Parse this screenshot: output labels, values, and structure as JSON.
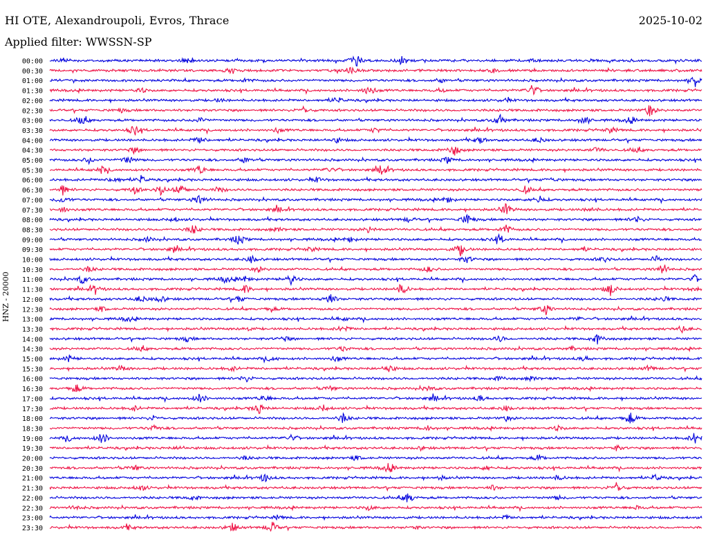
{
  "header": {
    "station": "HI OTE, Alexandroupoli, Evros, Thrace",
    "date": "2025-10-02",
    "filter": "Applied filter: WWSSN-SP"
  },
  "colors": {
    "blue": "#0000dd",
    "red": "#ee1144"
  },
  "chart_data": {
    "type": "line",
    "title": "HI OTE, Alexandroupoli, Evros, Thrace",
    "ylabel": "HNZ - 20000",
    "xlabel": "",
    "tick_labels": [
      "00:00",
      "00:30",
      "01:00",
      "01:30",
      "02:00",
      "02:30",
      "03:00",
      "03:30",
      "04:00",
      "04:30",
      "05:00",
      "05:30",
      "06:00",
      "06:30",
      "07:00",
      "07:30",
      "08:00",
      "08:30",
      "09:00",
      "09:30",
      "10:00",
      "10:30",
      "11:00",
      "11:30",
      "12:00",
      "12:30",
      "13:00",
      "13:30",
      "14:00",
      "14:30",
      "15:00",
      "15:30",
      "16:00",
      "16:30",
      "17:00",
      "17:30",
      "18:00",
      "18:30",
      "19:00",
      "19:30",
      "20:00",
      "20:30",
      "21:00",
      "21:30",
      "22:00",
      "22:30",
      "23:00",
      "23:30"
    ],
    "series_colors": [
      "#0000dd",
      "#ee1144"
    ],
    "grid": false,
    "events": [
      [
        [
          0.47,
          1.0
        ],
        [
          0.54,
          0.8
        ],
        [
          0.21,
          0.4
        ],
        [
          0.02,
          0.3
        ],
        [
          0.74,
          0.3
        ]
      ],
      [
        [
          0.46,
          0.6
        ],
        [
          0.28,
          0.4
        ],
        [
          0.68,
          0.3
        ]
      ],
      [
        [
          0.99,
          1.0
        ],
        [
          0.3,
          0.3
        ],
        [
          0.6,
          0.3
        ]
      ],
      [
        [
          0.49,
          1.0
        ],
        [
          0.74,
          1.0
        ],
        [
          0.14,
          0.4
        ],
        [
          0.6,
          0.3
        ]
      ],
      [
        [
          0.44,
          0.6
        ],
        [
          0.26,
          0.3
        ],
        [
          0.7,
          0.3
        ]
      ],
      [
        [
          0.39,
          0.6
        ],
        [
          0.92,
          1.0
        ],
        [
          0.11,
          0.3
        ]
      ],
      [
        [
          0.05,
          0.8
        ],
        [
          0.23,
          0.5
        ],
        [
          0.69,
          1.0
        ],
        [
          0.82,
          0.8
        ],
        [
          0.89,
          0.5
        ]
      ],
      [
        [
          0.13,
          0.9
        ],
        [
          0.5,
          0.5
        ],
        [
          0.35,
          0.4
        ],
        [
          0.86,
          0.5
        ]
      ],
      [
        [
          0.23,
          0.6
        ],
        [
          0.66,
          0.6
        ],
        [
          0.75,
          0.5
        ],
        [
          0.44,
          0.4
        ]
      ],
      [
        [
          0.62,
          1.0
        ],
        [
          0.13,
          0.5
        ],
        [
          0.84,
          0.5
        ],
        [
          0.9,
          0.4
        ]
      ],
      [
        [
          0.12,
          0.8
        ],
        [
          0.06,
          0.5
        ],
        [
          0.3,
          0.5
        ],
        [
          0.61,
          0.5
        ]
      ],
      [
        [
          0.23,
          0.8
        ],
        [
          0.51,
          0.9
        ],
        [
          0.08,
          0.6
        ],
        [
          0.43,
          0.5
        ]
      ],
      [
        [
          0.1,
          0.6
        ],
        [
          0.14,
          0.6
        ],
        [
          0.41,
          0.4
        ],
        [
          0.77,
          0.3
        ]
      ],
      [
        [
          0.2,
          1.0
        ],
        [
          0.02,
          0.8
        ],
        [
          0.17,
          0.8
        ],
        [
          0.13,
          0.6
        ],
        [
          0.73,
          0.6
        ],
        [
          0.26,
          0.5
        ]
      ],
      [
        [
          0.23,
          1.0
        ],
        [
          0.61,
          0.5
        ],
        [
          0.75,
          0.7
        ],
        [
          0.02,
          0.6
        ]
      ],
      [
        [
          0.7,
          1.0
        ],
        [
          0.02,
          0.5
        ],
        [
          0.35,
          0.4
        ],
        [
          0.83,
          0.4
        ]
      ],
      [
        [
          0.64,
          1.0
        ],
        [
          0.9,
          0.6
        ],
        [
          0.19,
          0.4
        ],
        [
          0.55,
          0.4
        ]
      ],
      [
        [
          0.22,
          0.8
        ],
        [
          0.49,
          0.6
        ],
        [
          0.7,
          0.8
        ],
        [
          0.35,
          0.4
        ]
      ],
      [
        [
          0.29,
          1.0
        ],
        [
          0.69,
          0.8
        ],
        [
          0.15,
          0.4
        ],
        [
          0.46,
          0.4
        ]
      ],
      [
        [
          0.63,
          1.0
        ],
        [
          0.19,
          0.4
        ],
        [
          0.4,
          0.4
        ],
        [
          0.82,
          0.3
        ]
      ],
      [
        [
          0.31,
          0.6
        ],
        [
          0.64,
          0.6
        ],
        [
          0.85,
          0.5
        ],
        [
          0.93,
          0.5
        ]
      ],
      [
        [
          0.94,
          1.0
        ],
        [
          0.06,
          0.5
        ],
        [
          0.32,
          0.4
        ],
        [
          0.58,
          0.5
        ]
      ],
      [
        [
          0.05,
          0.7
        ],
        [
          0.27,
          0.6
        ],
        [
          0.37,
          0.8
        ],
        [
          0.99,
          0.6
        ],
        [
          0.3,
          0.4
        ]
      ],
      [
        [
          0.54,
          1.0
        ],
        [
          0.86,
          1.0
        ],
        [
          0.07,
          0.7
        ],
        [
          0.3,
          0.7
        ],
        [
          0.99,
          0.4
        ]
      ],
      [
        [
          0.43,
          1.0
        ],
        [
          0.14,
          0.6
        ],
        [
          0.17,
          0.6
        ],
        [
          0.29,
          0.5
        ],
        [
          0.94,
          0.5
        ]
      ],
      [
        [
          0.76,
          1.0
        ],
        [
          0.08,
          0.4
        ],
        [
          0.34,
          0.4
        ]
      ],
      [
        [
          0.12,
          0.4
        ],
        [
          0.45,
          0.3
        ],
        [
          0.81,
          0.3
        ]
      ],
      [
        [
          0.45,
          0.6
        ],
        [
          0.3,
          0.4
        ],
        [
          0.97,
          0.5
        ]
      ],
      [
        [
          0.84,
          0.8
        ],
        [
          0.69,
          0.5
        ],
        [
          0.21,
          0.4
        ],
        [
          0.36,
          0.4
        ]
      ],
      [
        [
          0.14,
          0.4
        ],
        [
          0.45,
          0.4
        ],
        [
          0.8,
          0.3
        ]
      ],
      [
        [
          0.03,
          0.5
        ],
        [
          0.34,
          0.5
        ],
        [
          0.44,
          0.5
        ],
        [
          0.82,
          0.4
        ]
      ],
      [
        [
          0.52,
          0.7
        ],
        [
          0.11,
          0.5
        ],
        [
          0.92,
          0.5
        ],
        [
          0.28,
          0.4
        ]
      ],
      [
        [
          0.3,
          0.6
        ],
        [
          0.69,
          0.4
        ],
        [
          0.74,
          0.4
        ]
      ],
      [
        [
          0.04,
          0.8
        ],
        [
          0.43,
          0.4
        ],
        [
          0.58,
          0.4
        ]
      ],
      [
        [
          0.23,
          0.8
        ],
        [
          0.33,
          0.6
        ],
        [
          0.66,
          0.5
        ],
        [
          0.59,
          0.4
        ]
      ],
      [
        [
          0.32,
          1.0
        ],
        [
          0.42,
          0.5
        ],
        [
          0.7,
          0.4
        ],
        [
          0.13,
          0.4
        ]
      ],
      [
        [
          0.45,
          0.8
        ],
        [
          0.89,
          1.0
        ],
        [
          0.16,
          0.4
        ],
        [
          0.7,
          0.4
        ]
      ],
      [
        [
          0.16,
          0.5
        ],
        [
          0.58,
          0.4
        ],
        [
          0.78,
          0.4
        ]
      ],
      [
        [
          0.08,
          1.0
        ],
        [
          0.37,
          0.5
        ],
        [
          0.99,
          1.0
        ],
        [
          0.03,
          0.4
        ]
      ],
      [
        [
          0.87,
          0.4
        ],
        [
          0.57,
          0.3
        ],
        [
          0.2,
          0.3
        ]
      ],
      [
        [
          0.75,
          0.5
        ],
        [
          0.47,
          0.4
        ],
        [
          0.3,
          0.3
        ]
      ],
      [
        [
          0.52,
          0.8
        ],
        [
          0.13,
          0.5
        ],
        [
          0.67,
          0.4
        ]
      ],
      [
        [
          0.33,
          0.7
        ],
        [
          0.93,
          0.5
        ],
        [
          0.78,
          0.4
        ],
        [
          0.6,
          0.3
        ]
      ],
      [
        [
          0.87,
          1.0
        ],
        [
          0.14,
          0.5
        ],
        [
          0.68,
          0.4
        ]
      ],
      [
        [
          0.55,
          1.0
        ],
        [
          0.22,
          0.4
        ],
        [
          0.78,
          0.3
        ]
      ],
      [
        [
          0.04,
          0.4
        ],
        [
          0.49,
          0.4
        ],
        [
          0.9,
          0.3
        ]
      ],
      [
        [
          0.35,
          0.3
        ],
        [
          0.7,
          0.3
        ]
      ],
      [
        [
          0.28,
          0.8
        ],
        [
          0.34,
          1.0
        ],
        [
          0.12,
          0.4
        ],
        [
          0.56,
          0.3
        ]
      ]
    ]
  }
}
